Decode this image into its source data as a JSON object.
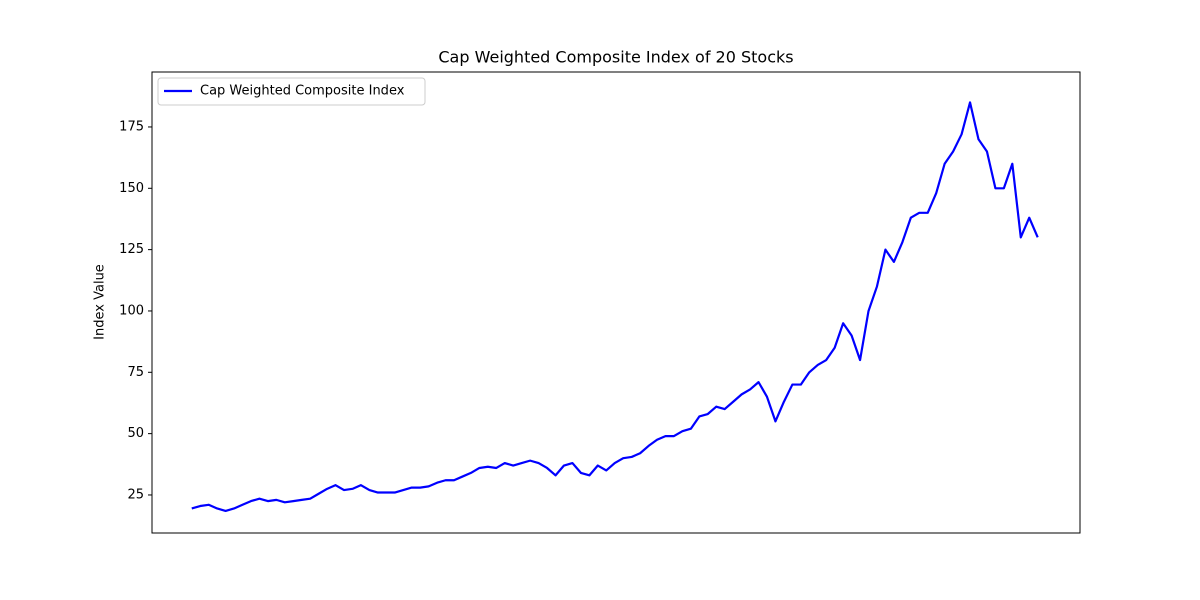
{
  "chart_data": {
    "type": "line",
    "title": "Cap Weighted Composite Index of 20 Stocks",
    "y_label": "Index Value",
    "x": [
      0,
      1,
      2,
      3,
      4,
      5,
      6,
      7,
      8,
      9,
      10,
      11,
      12,
      13,
      14,
      15,
      16,
      17,
      18,
      19,
      20,
      21,
      22,
      23,
      24,
      25,
      26,
      27,
      28,
      29,
      30,
      31,
      32,
      33,
      34,
      35,
      36,
      37,
      38,
      39,
      40,
      41,
      42,
      43,
      44,
      45,
      46,
      47,
      48,
      49,
      50,
      51,
      52,
      53,
      54,
      55,
      56,
      57,
      58,
      59,
      60,
      61,
      62,
      63,
      64,
      65,
      66,
      67,
      68,
      69,
      70,
      71,
      72,
      73,
      74,
      75,
      76,
      77,
      78,
      79,
      80,
      81,
      82,
      83,
      84,
      85,
      86,
      87,
      88,
      89,
      90,
      91,
      92,
      93,
      94,
      95,
      96,
      97,
      98,
      99,
      100
    ],
    "series": [
      {
        "name": "Cap Weighted Composite Index",
        "color": "#0000ff",
        "values": [
          19.5,
          20.5,
          21,
          19.5,
          18.5,
          19.5,
          21,
          22.5,
          23.5,
          22.5,
          23,
          22,
          22.5,
          23,
          23.5,
          25.5,
          27.5,
          29,
          27,
          27.5,
          29,
          27,
          26,
          26,
          26,
          27,
          28,
          28,
          28.5,
          30,
          31,
          31,
          32.5,
          34,
          36,
          36.5,
          36,
          38,
          37,
          38,
          39,
          38,
          36,
          33,
          37,
          38,
          34,
          33,
          37,
          35,
          38,
          40,
          40.5,
          42,
          45,
          47.5,
          49,
          49,
          51,
          52,
          57,
          58,
          61,
          60,
          63,
          66,
          68,
          71,
          65,
          55,
          63,
          70,
          70,
          75,
          78,
          80,
          85,
          95,
          90,
          80,
          100,
          110,
          125,
          120,
          128,
          138,
          140,
          140,
          148,
          160,
          165,
          172,
          185,
          170,
          165,
          150,
          150,
          160,
          130,
          138,
          130
        ]
      }
    ],
    "xlim": [
      -4.7,
      105
    ],
    "ylim": [
      9.5,
      197.4
    ],
    "yticks": [
      25,
      50,
      75,
      100,
      125,
      150,
      175
    ],
    "legend": "upper left"
  }
}
